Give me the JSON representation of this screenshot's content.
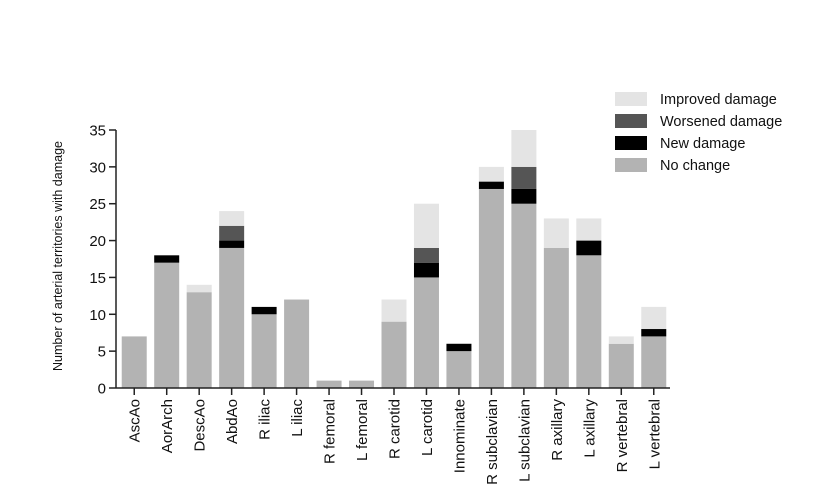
{
  "chart_data": {
    "type": "bar",
    "stacked": true,
    "ylabel": "Number of arterial territories with damage",
    "ylim": [
      0,
      35
    ],
    "yticks": [
      0,
      5,
      10,
      15,
      20,
      25,
      30,
      35
    ],
    "categories": [
      "AscAo",
      "AorArch",
      "DescAo",
      "AbdAo",
      "R iliac",
      "L iliac",
      "R femoral",
      "L femoral",
      "R carotid",
      "L carotid",
      "Innominate",
      "R subclavian",
      "L subclavian",
      "R axillary",
      "L axillary",
      "R vertebral",
      "L vertebral"
    ],
    "series": [
      {
        "name": "No change",
        "color": "#b3b3b3",
        "values": [
          7,
          17,
          13,
          19,
          10,
          12,
          1,
          1,
          9,
          15,
          5,
          27,
          25,
          19,
          18,
          6,
          7
        ]
      },
      {
        "name": "New damage",
        "color": "#000000",
        "values": [
          0,
          1,
          0,
          1,
          1,
          0,
          0,
          0,
          0,
          2,
          1,
          1,
          2,
          0,
          2,
          0,
          1
        ]
      },
      {
        "name": "Worsened damage",
        "color": "#555555",
        "values": [
          0,
          0,
          0,
          2,
          0,
          0,
          0,
          0,
          0,
          2,
          0,
          0,
          3,
          0,
          0,
          0,
          0
        ]
      },
      {
        "name": "Improved damage",
        "color": "#e4e4e4",
        "values": [
          0,
          0,
          1,
          2,
          0,
          0,
          0,
          0,
          3,
          6,
          0,
          2,
          5,
          4,
          3,
          1,
          3
        ]
      }
    ],
    "legend_order": [
      "Improved damage",
      "Worsened damage",
      "New damage",
      "No change"
    ],
    "legend_position": "top-right",
    "grid": false
  }
}
